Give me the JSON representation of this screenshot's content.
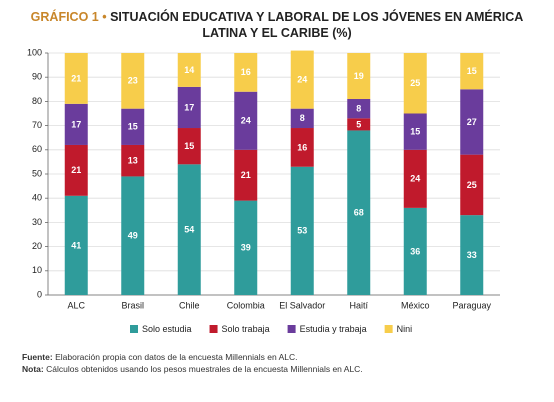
{
  "chart_data": {
    "type": "stacked_bar",
    "title_prefix": "GRÁFICO 1 •",
    "title": "SITUACIÓN EDUCATIVA Y LABORAL DE LOS JÓVENES EN AMÉRICA LATINA Y EL CARIBE (%)",
    "categories": [
      "ALC",
      "Brasil",
      "Chile",
      "Colombia",
      "El Salvador",
      "Haití",
      "México",
      "Paraguay"
    ],
    "series": [
      {
        "name": "Solo estudia",
        "color": "#2f9c9b",
        "values": [
          41,
          49,
          54,
          39,
          53,
          68,
          36,
          33
        ]
      },
      {
        "name": "Solo trabaja",
        "color": "#c01a2c",
        "values": [
          21,
          13,
          15,
          21,
          16,
          5,
          24,
          25
        ]
      },
      {
        "name": "Estudia y trabaja",
        "color": "#6a3c9c",
        "values": [
          17,
          15,
          17,
          24,
          8,
          8,
          15,
          27
        ]
      },
      {
        "name": "Nini",
        "color": "#f7cd4b",
        "values": [
          21,
          23,
          14,
          16,
          24,
          19,
          25,
          15
        ]
      }
    ],
    "ylim": [
      0,
      100
    ],
    "yticks": [
      0,
      10,
      20,
      30,
      40,
      50,
      60,
      70,
      80,
      90,
      100
    ],
    "grid": true,
    "notes": [
      {
        "label": "Fuente:",
        "text": "Elaboración propia con datos de la encuesta Millennials en ALC."
      },
      {
        "label": "Nota:",
        "text": "Cálculos obtenidos usando los pesos muestrales de la encuesta Millennials en ALC."
      }
    ]
  }
}
